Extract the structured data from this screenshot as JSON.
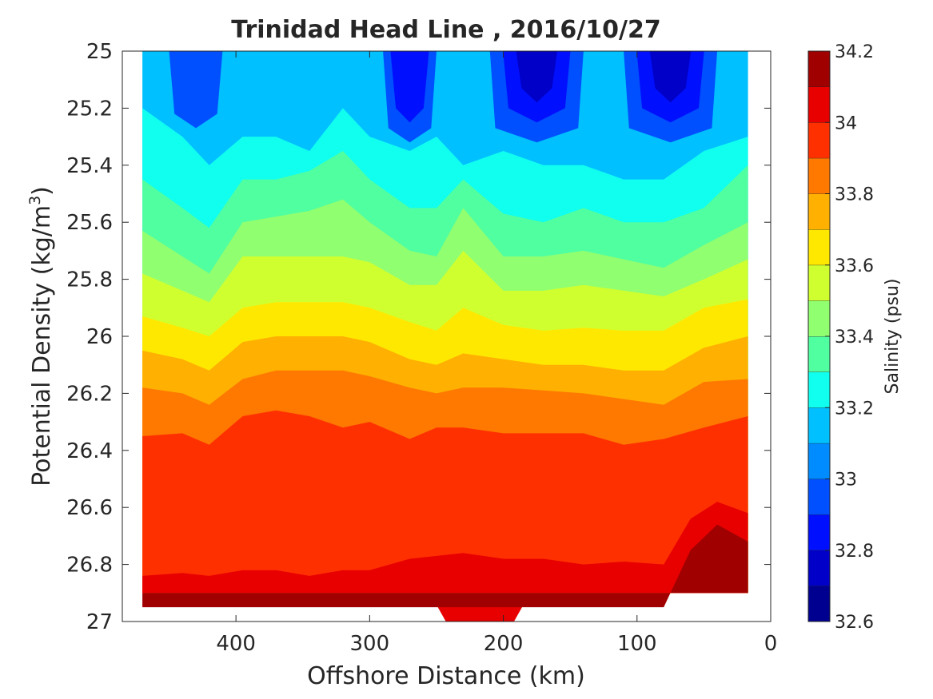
{
  "chart_data": {
    "type": "heatmap",
    "subtype": "filled-contour",
    "title": "Trinidad Head Line , 2016/10/27",
    "xlabel": "Offshore Distance (km)",
    "ylabel_main": "Potential Density (kg/m",
    "ylabel_sup": "3",
    "ylabel_close": ")",
    "xlim": [
      485,
      0
    ],
    "ylim": [
      25,
      27
    ],
    "y_reversed": true,
    "x_ticks": [
      400,
      300,
      200,
      100,
      0
    ],
    "y_ticks": [
      25,
      25.2,
      25.4,
      25.6,
      25.8,
      26,
      26.2,
      26.4,
      26.6,
      26.8,
      27
    ],
    "x_tick_labels": [
      "400",
      "300",
      "200",
      "100",
      "0"
    ],
    "y_tick_labels": [
      "25",
      "25.2",
      "25.4",
      "25.6",
      "25.8",
      "26",
      "26.2",
      "26.4",
      "26.6",
      "26.8",
      "27"
    ],
    "colorbar": {
      "label": "Salinity (psu)",
      "range": [
        32.6,
        34.2
      ],
      "tick_values": [
        32.6,
        32.8,
        33,
        33.2,
        33.4,
        33.6,
        33.8,
        34,
        34.2
      ],
      "tick_labels": [
        "32.6",
        "32.8",
        "33",
        "33.2",
        "33.4",
        "33.6",
        "33.8",
        "34",
        "34.2"
      ],
      "levels": [
        {
          "from": 32.6,
          "to": 32.7,
          "color": "#000090"
        },
        {
          "from": 32.7,
          "to": 32.8,
          "color": "#0000c8"
        },
        {
          "from": 32.8,
          "to": 32.9,
          "color": "#0010ff"
        },
        {
          "from": 32.9,
          "to": 33.0,
          "color": "#0050ff"
        },
        {
          "from": 33.0,
          "to": 33.1,
          "color": "#008cff"
        },
        {
          "from": 33.1,
          "to": 33.2,
          "color": "#00c0ff"
        },
        {
          "from": 33.2,
          "to": 33.3,
          "color": "#10ffef"
        },
        {
          "from": 33.3,
          "to": 33.4,
          "color": "#50ffa0"
        },
        {
          "from": 33.4,
          "to": 33.5,
          "color": "#90ff70"
        },
        {
          "from": 33.5,
          "to": 33.6,
          "color": "#d0ff30"
        },
        {
          "from": 33.6,
          "to": 33.7,
          "color": "#ffe800"
        },
        {
          "from": 33.7,
          "to": 33.8,
          "color": "#ffb000"
        },
        {
          "from": 33.8,
          "to": 33.9,
          "color": "#ff7800"
        },
        {
          "from": 33.9,
          "to": 34.0,
          "color": "#ff3000"
        },
        {
          "from": 34.0,
          "to": 34.1,
          "color": "#e80000"
        },
        {
          "from": 34.1,
          "to": 34.2,
          "color": "#a00000"
        }
      ]
    },
    "section": {
      "x_range": [
        470,
        17
      ],
      "bottom_density": 26.9,
      "boundaries": [
        {
          "level": 33.2,
          "points": [
            [
              470,
              25.2
            ],
            [
              440,
              25.3
            ],
            [
              420,
              25.4
            ],
            [
              395,
              25.3
            ],
            [
              370,
              25.3
            ],
            [
              345,
              25.35
            ],
            [
              320,
              25.2
            ],
            [
              300,
              25.3
            ],
            [
              270,
              25.35
            ],
            [
              250,
              25.3
            ],
            [
              230,
              25.4
            ],
            [
              200,
              25.35
            ],
            [
              170,
              25.4
            ],
            [
              140,
              25.4
            ],
            [
              110,
              25.45
            ],
            [
              80,
              25.45
            ],
            [
              50,
              25.35
            ],
            [
              17,
              25.3
            ]
          ]
        },
        {
          "level": 33.3,
          "points": [
            [
              470,
              25.45
            ],
            [
              440,
              25.55
            ],
            [
              420,
              25.62
            ],
            [
              395,
              25.45
            ],
            [
              370,
              25.45
            ],
            [
              345,
              25.42
            ],
            [
              320,
              25.35
            ],
            [
              300,
              25.45
            ],
            [
              270,
              25.55
            ],
            [
              250,
              25.55
            ],
            [
              230,
              25.45
            ],
            [
              200,
              25.57
            ],
            [
              170,
              25.6
            ],
            [
              140,
              25.55
            ],
            [
              110,
              25.6
            ],
            [
              80,
              25.6
            ],
            [
              50,
              25.55
            ],
            [
              17,
              25.4
            ]
          ]
        },
        {
          "level": 33.4,
          "points": [
            [
              470,
              25.63
            ],
            [
              440,
              25.72
            ],
            [
              420,
              25.78
            ],
            [
              395,
              25.6
            ],
            [
              370,
              25.58
            ],
            [
              345,
              25.56
            ],
            [
              320,
              25.52
            ],
            [
              300,
              25.6
            ],
            [
              270,
              25.7
            ],
            [
              250,
              25.72
            ],
            [
              230,
              25.55
            ],
            [
              200,
              25.72
            ],
            [
              170,
              25.72
            ],
            [
              140,
              25.7
            ],
            [
              110,
              25.73
            ],
            [
              80,
              25.76
            ],
            [
              50,
              25.68
            ],
            [
              17,
              25.6
            ]
          ]
        },
        {
          "level": 33.5,
          "points": [
            [
              470,
              25.78
            ],
            [
              440,
              25.84
            ],
            [
              420,
              25.88
            ],
            [
              395,
              25.72
            ],
            [
              370,
              25.72
            ],
            [
              345,
              25.72
            ],
            [
              320,
              25.72
            ],
            [
              300,
              25.74
            ],
            [
              270,
              25.82
            ],
            [
              250,
              25.82
            ],
            [
              230,
              25.7
            ],
            [
              200,
              25.84
            ],
            [
              170,
              25.84
            ],
            [
              140,
              25.82
            ],
            [
              110,
              25.84
            ],
            [
              80,
              25.86
            ],
            [
              50,
              25.8
            ],
            [
              17,
              25.73
            ]
          ]
        },
        {
          "level": 33.6,
          "points": [
            [
              470,
              25.93
            ],
            [
              440,
              25.97
            ],
            [
              420,
              26.0
            ],
            [
              395,
              25.9
            ],
            [
              370,
              25.88
            ],
            [
              345,
              25.88
            ],
            [
              320,
              25.88
            ],
            [
              300,
              25.9
            ],
            [
              270,
              25.95
            ],
            [
              250,
              25.98
            ],
            [
              230,
              25.9
            ],
            [
              200,
              25.96
            ],
            [
              170,
              25.98
            ],
            [
              140,
              25.97
            ],
            [
              110,
              25.98
            ],
            [
              80,
              25.98
            ],
            [
              50,
              25.9
            ],
            [
              17,
              25.87
            ]
          ]
        },
        {
          "level": 33.7,
          "points": [
            [
              470,
              26.05
            ],
            [
              440,
              26.08
            ],
            [
              420,
              26.12
            ],
            [
              395,
              26.02
            ],
            [
              370,
              26.0
            ],
            [
              345,
              26.0
            ],
            [
              320,
              26.0
            ],
            [
              300,
              26.02
            ],
            [
              270,
              26.08
            ],
            [
              250,
              26.1
            ],
            [
              230,
              26.06
            ],
            [
              200,
              26.08
            ],
            [
              170,
              26.1
            ],
            [
              140,
              26.1
            ],
            [
              110,
              26.12
            ],
            [
              80,
              26.12
            ],
            [
              50,
              26.04
            ],
            [
              17,
              26.0
            ]
          ]
        },
        {
          "level": 33.8,
          "points": [
            [
              470,
              26.18
            ],
            [
              440,
              26.2
            ],
            [
              420,
              26.24
            ],
            [
              395,
              26.15
            ],
            [
              370,
              26.12
            ],
            [
              345,
              26.12
            ],
            [
              320,
              26.12
            ],
            [
              300,
              26.14
            ],
            [
              270,
              26.18
            ],
            [
              250,
              26.2
            ],
            [
              230,
              26.18
            ],
            [
              200,
              26.18
            ],
            [
              170,
              26.19
            ],
            [
              140,
              26.2
            ],
            [
              110,
              26.22
            ],
            [
              80,
              26.24
            ],
            [
              50,
              26.16
            ],
            [
              17,
              26.15
            ]
          ]
        },
        {
          "level": 33.9,
          "points": [
            [
              470,
              26.35
            ],
            [
              440,
              26.34
            ],
            [
              420,
              26.38
            ],
            [
              395,
              26.28
            ],
            [
              370,
              26.26
            ],
            [
              345,
              26.28
            ],
            [
              320,
              26.32
            ],
            [
              300,
              26.3
            ],
            [
              270,
              26.36
            ],
            [
              250,
              26.32
            ],
            [
              230,
              26.32
            ],
            [
              200,
              26.34
            ],
            [
              170,
              26.34
            ],
            [
              140,
              26.34
            ],
            [
              110,
              26.38
            ],
            [
              80,
              26.36
            ],
            [
              50,
              26.32
            ],
            [
              17,
              26.28
            ]
          ]
        },
        {
          "level": 34.0,
          "points": [
            [
              470,
              26.84
            ],
            [
              440,
              26.83
            ],
            [
              420,
              26.84
            ],
            [
              395,
              26.82
            ],
            [
              370,
              26.82
            ],
            [
              345,
              26.84
            ],
            [
              320,
              26.82
            ],
            [
              300,
              26.82
            ],
            [
              270,
              26.78
            ],
            [
              250,
              26.77
            ],
            [
              230,
              26.76
            ],
            [
              200,
              26.78
            ],
            [
              170,
              26.78
            ],
            [
              140,
              26.8
            ],
            [
              110,
              26.79
            ],
            [
              80,
              26.8
            ],
            [
              60,
              26.64
            ],
            [
              40,
              26.58
            ],
            [
              17,
              26.62
            ]
          ]
        },
        {
          "level": 34.1,
          "points": [
            [
              470,
              26.95
            ],
            [
              440,
              26.95
            ],
            [
              420,
              26.95
            ],
            [
              395,
              26.95
            ],
            [
              370,
              26.95
            ],
            [
              345,
              26.95
            ],
            [
              320,
              26.95
            ],
            [
              300,
              26.95
            ],
            [
              270,
              26.95
            ],
            [
              250,
              26.95
            ],
            [
              230,
              26.95
            ],
            [
              200,
              26.95
            ],
            [
              170,
              26.95
            ],
            [
              140,
              26.95
            ],
            [
              110,
              26.95
            ],
            [
              80,
              26.95
            ],
            [
              60,
              26.75
            ],
            [
              40,
              26.66
            ],
            [
              17,
              26.72
            ]
          ]
        }
      ],
      "fresh_cores": [
        {
          "x_range": [
            450,
            410
          ],
          "levels": [
            33.0
          ]
        },
        {
          "x_range": [
            290,
            250
          ],
          "levels": [
            33.0,
            32.9
          ]
        },
        {
          "x_range": [
            210,
            140
          ],
          "levels": [
            33.0,
            32.9,
            32.8
          ]
        },
        {
          "x_range": [
            110,
            40
          ],
          "levels": [
            33.0,
            32.9,
            32.8
          ]
        }
      ],
      "deep_lobe": {
        "x_range": [
          255,
          180
        ],
        "bottom": 27.0
      }
    }
  }
}
